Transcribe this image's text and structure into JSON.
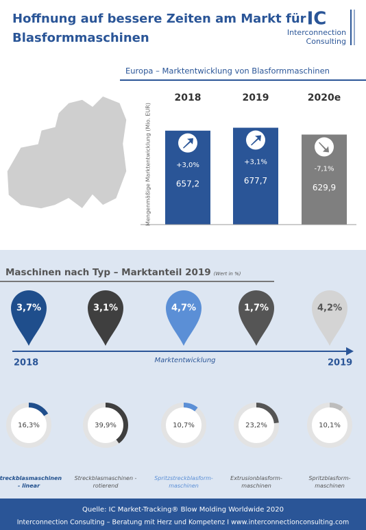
{
  "header": {
    "title_line1": "Hoffnung auf bessere Zeiten am Markt für",
    "title_line2": "Blasformmaschinen",
    "logo": "IC",
    "logo_line1": "Interconnection",
    "logo_line2": "Consulting"
  },
  "chart_data": [
    {
      "type": "bar",
      "title": "Europa – Marktentwicklung von Blasformmaschinen",
      "y_label": "Mengenmäßige Marktentwicklung (Mio. EUR)",
      "categories": [
        "2018",
        "2019",
        "2020e"
      ],
      "values": [
        657.2,
        677.7,
        629.9
      ],
      "value_labels": [
        "657,2",
        "677,7",
        "629,9"
      ],
      "change_labels": [
        "+3,0%",
        "+3,1%",
        "-7,1%"
      ],
      "colors": [
        "#2a5597",
        "#2a5597",
        "#7f7f7f"
      ],
      "ylim": [
        0,
        800
      ]
    },
    {
      "type": "pin",
      "values": [
        3.7,
        3.1,
        4.7,
        1.7,
        4.2
      ],
      "value_labels": [
        "3,7%",
        "3,1%",
        "4,7%",
        "1,7%",
        "4,2%"
      ],
      "colors": [
        "#1f4e8c",
        "#3f3f3f",
        "#5b8fd6",
        "#555555",
        "#d4d4d4"
      ],
      "x_start": "2018",
      "x_end": "2019",
      "axis_label": "Marktentwicklung"
    },
    {
      "type": "donut",
      "title": "Maschinen nach Typ – Marktanteil 2019",
      "title_note": "(Wert in %)",
      "categories": [
        "Streckblasmaschinen\n- linear",
        "Streckblasmaschinen -\nrotierend",
        "Spritzstreckblasform-\nmaschinen",
        "Extrusionblasform-\nmaschinen",
        "Spritzblasform-\nmaschinen"
      ],
      "values": [
        16.3,
        39.9,
        10.7,
        23.2,
        10.1
      ],
      "value_labels": [
        "16,3%",
        "39,9%",
        "10,7%",
        "23,2%",
        "10,1%"
      ],
      "colors": [
        "#1f4e8c",
        "#3f3f3f",
        "#5b8fd6",
        "#555555",
        "#bdbdbd"
      ]
    }
  ],
  "footer": {
    "line1": "Quelle: IC Market-Tracking® Blow Molding Worldwide 2020",
    "line2": "Interconnection Consulting – Beratung mit Herz und Kompetenz I www.interconnectionconsulting.com"
  }
}
